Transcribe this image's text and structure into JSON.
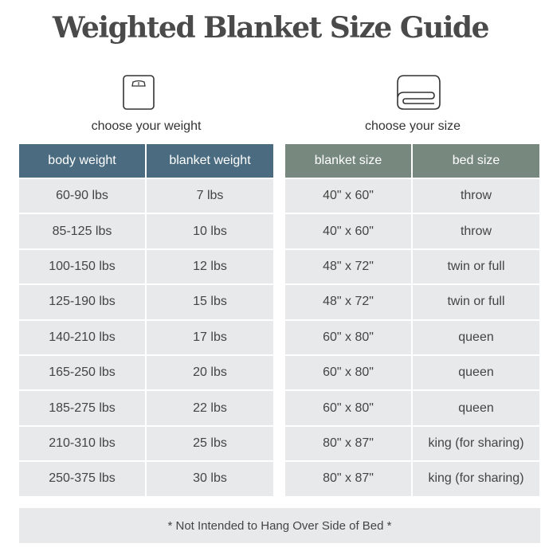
{
  "title": "Weighted Blanket Size Guide",
  "weight_section": {
    "icon": "scale-icon",
    "caption": "choose your weight",
    "headers": [
      "body weight",
      "blanket weight"
    ],
    "rows": [
      [
        "60-90 lbs",
        "7 lbs"
      ],
      [
        "85-125 lbs",
        "10 lbs"
      ],
      [
        "100-150 lbs",
        "12 lbs"
      ],
      [
        "125-190 lbs",
        "15 lbs"
      ],
      [
        "140-210 lbs",
        "17 lbs"
      ],
      [
        "165-250 lbs",
        "20 lbs"
      ],
      [
        "185-275 lbs",
        "22 lbs"
      ],
      [
        "210-310 lbs",
        "25 lbs"
      ],
      [
        "250-375 lbs",
        "30 lbs"
      ]
    ]
  },
  "size_section": {
    "icon": "folded-blanket-icon",
    "caption": "choose your size",
    "headers": [
      "blanket size",
      "bed size"
    ],
    "rows": [
      [
        "40\" x 60\"",
        "throw"
      ],
      [
        "40\" x 60\"",
        "throw"
      ],
      [
        "48\" x 72\"",
        "twin or full"
      ],
      [
        "48\" x 72\"",
        "twin or full"
      ],
      [
        "60\" x 80\"",
        "queen"
      ],
      [
        "60\" x 80\"",
        "queen"
      ],
      [
        "60\" x 80\"",
        "queen"
      ],
      [
        "80\" x 87\"",
        "king (for sharing)"
      ],
      [
        "80\" x 87\"",
        "king (for sharing)"
      ]
    ]
  },
  "footer_note": "* Not Intended to Hang Over Side of Bed *",
  "colors": {
    "weight_header": "#4b6c80",
    "size_header": "#77897f",
    "cell_bg": "#e8e9ea"
  }
}
